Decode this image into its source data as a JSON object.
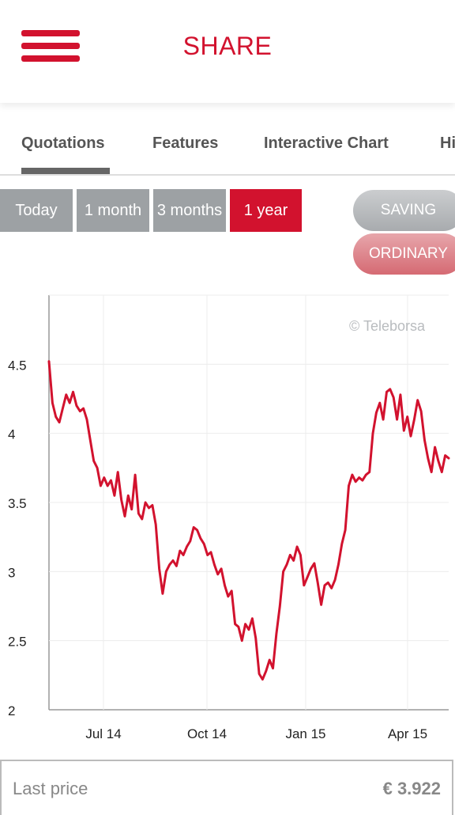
{
  "header": {
    "title": "SHARE",
    "menu_icon": "hamburger-menu-icon"
  },
  "tabs": [
    {
      "label": "Quotations",
      "active": true
    },
    {
      "label": "Features",
      "active": false
    },
    {
      "label": "Interactive Chart",
      "active": false
    },
    {
      "label": "Hi",
      "active": false
    }
  ],
  "periods": [
    {
      "label": "Today",
      "active": false
    },
    {
      "label": "1 month",
      "active": false
    },
    {
      "label": "3 months",
      "active": false
    },
    {
      "label": "1 year",
      "active": true
    }
  ],
  "share_types": {
    "saving": "SAVING",
    "ordinary": "ORDINARY"
  },
  "chart_data": {
    "type": "line",
    "watermark": "© Teleborsa",
    "color": "#d2122e",
    "ylim": [
      2,
      5
    ],
    "yticks": [
      "4.5",
      "4",
      "3.5",
      "3",
      "2.5",
      "2"
    ],
    "xticks": [
      "Jul 14",
      "Oct 14",
      "Jan 15",
      "Apr 15"
    ],
    "grid": true,
    "series": [
      {
        "values": [
          4.52,
          4.22,
          4.12,
          4.08,
          4.18,
          4.28,
          4.22,
          4.3,
          4.2,
          4.16,
          4.18,
          4.1,
          3.95,
          3.8,
          3.75,
          3.62,
          3.68,
          3.62,
          3.66,
          3.55,
          3.72,
          3.52,
          3.4,
          3.55,
          3.45,
          3.7,
          3.42,
          3.38,
          3.5,
          3.46,
          3.48,
          3.34,
          3.02,
          2.84,
          3.0,
          3.05,
          3.08,
          3.04,
          3.15,
          3.12,
          3.18,
          3.22,
          3.32,
          3.3,
          3.24,
          3.2,
          3.12,
          3.14,
          3.05,
          2.98,
          3.02,
          2.9,
          2.82,
          2.86,
          2.62,
          2.6,
          2.5,
          2.62,
          2.58,
          2.66,
          2.52,
          2.26,
          2.22,
          2.28,
          2.36,
          2.3,
          2.55,
          2.75,
          3.0,
          3.05,
          3.12,
          3.08,
          3.18,
          3.12,
          2.9,
          2.96,
          3.02,
          3.06,
          2.92,
          2.76,
          2.9,
          2.92,
          2.88,
          2.94,
          3.05,
          3.2,
          3.3,
          3.62,
          3.7,
          3.65,
          3.68,
          3.66,
          3.7,
          3.72,
          4.0,
          4.15,
          4.22,
          4.1,
          4.3,
          4.32,
          4.26,
          4.1,
          4.28,
          4.02,
          4.12,
          3.98,
          4.1,
          4.24,
          4.16,
          3.95,
          3.82,
          3.72,
          3.9,
          3.8,
          3.72,
          3.84,
          3.82
        ]
      }
    ]
  },
  "last_price": {
    "label": "Last price",
    "value": "€ 3.922"
  }
}
